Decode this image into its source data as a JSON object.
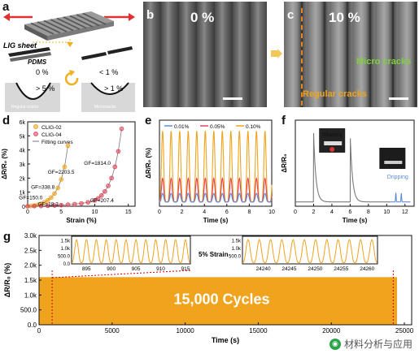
{
  "panels": {
    "a": {
      "label": "a",
      "lig_sheet": "LIG sheet",
      "pdms": "PDMS",
      "strain_left": "0 %",
      "strain_right": "< 1 %",
      "gt_left": "> 5 %",
      "gt_right": "> 1 %",
      "caption_left": "Regular cracks",
      "caption_right": "Microcracks"
    },
    "b": {
      "label": "b",
      "strain": "0 %"
    },
    "c": {
      "label": "c",
      "strain": "10 %",
      "micro": "Micro cracks",
      "regular": "Regular cracks"
    },
    "d": {
      "label": "d"
    },
    "e": {
      "label": "e"
    },
    "f": {
      "label": "f"
    },
    "g": {
      "label": "g"
    }
  },
  "colors": {
    "orange": "#f0a31c",
    "red": "#e0455a",
    "blue": "#5b8fd6",
    "gray": "#7a7a7a",
    "green": "#7fd13b"
  },
  "watermark": "材料分析与应用",
  "chart_data": [
    {
      "id": "d",
      "type": "scatter",
      "xlabel": "Strain (%)",
      "ylabel": "ΔR/R₀ (%)",
      "xlim": [
        0,
        16
      ],
      "ylim": [
        0,
        6000
      ],
      "yticklabels": [
        "0",
        "1k",
        "2k",
        "3k",
        "4k",
        "5k",
        "6k"
      ],
      "yticks": [
        0,
        1000,
        2000,
        3000,
        4000,
        5000,
        6000
      ],
      "xticks": [
        0,
        5,
        10,
        15
      ],
      "legend": [
        "CLIG-02",
        "CLIG-04",
        "Fitting curves"
      ],
      "series": [
        {
          "name": "CLIG-02",
          "x": [
            0,
            0.5,
            1,
            1.5,
            2,
            2.5,
            3,
            3.5,
            4,
            4.5,
            5,
            5.5,
            6
          ],
          "values": [
            0,
            20,
            50,
            100,
            180,
            280,
            420,
            620,
            900,
            1300,
            1900,
            2800,
            4300
          ]
        },
        {
          "name": "CLIG-04",
          "x": [
            0,
            1,
            2,
            3,
            4,
            5,
            6,
            7,
            8,
            9,
            10,
            10.5,
            11,
            11.5,
            12,
            12.5,
            13,
            13.5,
            14
          ],
          "values": [
            0,
            10,
            20,
            35,
            55,
            80,
            110,
            150,
            200,
            280,
            420,
            560,
            760,
            1050,
            1450,
            2000,
            2800,
            3900,
            5500
          ]
        }
      ],
      "annotations": [
        "GF=2203.5",
        "GF=338.8",
        "GF=150.0",
        "GF=18.3",
        "GF=1814.0",
        "GF=207.4"
      ]
    },
    {
      "id": "e",
      "type": "line",
      "xlabel": "Time (s)",
      "ylabel": "ΔR/R₀ (%)",
      "xlim": [
        0,
        10
      ],
      "xticks": [
        0,
        2,
        4,
        6,
        8,
        10
      ],
      "legend": [
        "0.01%",
        "0.05%",
        "0.10%"
      ],
      "series": [
        {
          "name": "0.01%",
          "period_s": 0.76,
          "amplitude": 0.8
        },
        {
          "name": "0.05%",
          "period_s": 0.76,
          "amplitude": 2.2
        },
        {
          "name": "0.10%",
          "period_s": 0.76,
          "amplitude": 6.6
        }
      ],
      "ylim": [
        0,
        8
      ]
    },
    {
      "id": "f",
      "type": "line",
      "xlabel": "Time (s)",
      "ylabel": "ΔR/R₀",
      "xlim": [
        0,
        13
      ],
      "xticks": [
        0,
        2,
        4,
        6,
        8,
        10,
        12
      ],
      "annotations": [
        "Blowing",
        "Dripping"
      ],
      "series": [
        {
          "name": "Blowing",
          "peaks_s": [
            2.0,
            6.0
          ],
          "peak_value": 8.0
        },
        {
          "name": "Dripping",
          "peaks_s": [
            11.0,
            11.6
          ],
          "peak_value": 1.0
        }
      ],
      "ylim": [
        0,
        10
      ]
    },
    {
      "id": "g",
      "type": "area",
      "xlabel": "Time (s)",
      "ylabel": "ΔR/R₀ (%)",
      "xlim": [
        0,
        25500
      ],
      "ylim": [
        0,
        3000
      ],
      "xticks": [
        0,
        5000,
        10000,
        15000,
        20000,
        25000
      ],
      "yticks": [
        0,
        500,
        1000,
        1500,
        2000,
        2500,
        3000
      ],
      "yticklabels": [
        "0.0",
        "500.0",
        "1.0k",
        "1.5k",
        "2.0k",
        "2.5k",
        "3.0k"
      ],
      "band_value": 1600,
      "center_text": "15,000 Cycles",
      "inset_text": "5% Strain",
      "insets": [
        {
          "xticks": [
            895,
            900,
            905,
            910,
            915
          ],
          "ytick_labels": [
            "0.0",
            "500.0",
            "1.0k",
            "1.5k"
          ],
          "yticks": [
            0,
            500,
            1000,
            1500
          ],
          "peaks": 12,
          "xlim": [
            892,
            916
          ]
        },
        {
          "xticks": [
            24240,
            24245,
            24250,
            24255,
            24260
          ],
          "ytick_labels": [
            "500.0",
            "1.0k",
            "1.5k"
          ],
          "yticks": [
            500,
            1000,
            1500
          ],
          "peaks": 12,
          "xlim": [
            24236,
            24262
          ]
        }
      ]
    }
  ]
}
